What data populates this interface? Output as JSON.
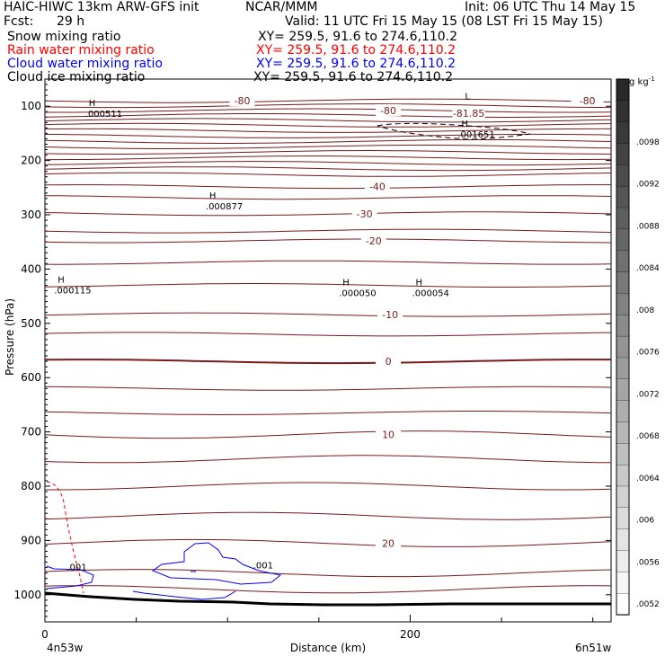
{
  "header": {
    "title": "HAIC-HIWC 13km ARW-GFS init",
    "org": "NCAR/MMM",
    "init": "Init: 06 UTC Thu 14 May 15",
    "fcst_label": "Fcst:",
    "fcst_value": "29 h",
    "valid": "Valid: 11 UTC Fri 15 May 15 (08 LST Fri 15 May 15)"
  },
  "fields": [
    {
      "name": "Snow mixing ratio",
      "xy": "XY= 259.5, 91.6 to 274.6,110.2",
      "color": "#000000"
    },
    {
      "name": "Rain water mixing ratio",
      "xy": "XY= 259.5, 91.6 to 274.6,110.2",
      "color": "#ff0000"
    },
    {
      "name": "Cloud water mixing ratio",
      "xy": "XY= 259.5, 91.6 to 274.6,110.2",
      "color": "#0000ff"
    },
    {
      "name": "Cloud ice mixing ratio",
      "xy": "XY= 259.5, 91.6 to 274.6,110.2",
      "color": "#000000"
    }
  ],
  "chart_data": {
    "type": "cross-section contour",
    "ylabel": "Pressure (hPa)",
    "xlabel": "Distance (km)",
    "x_start_label": "4n53w",
    "x_end_label": "6n51w",
    "x_ticks": [
      0,
      200
    ],
    "xlim": [
      0,
      310
    ],
    "y_ticks": [
      100,
      200,
      300,
      400,
      500,
      600,
      700,
      800,
      900,
      1000
    ],
    "ylim": [
      50,
      1050
    ],
    "temperature_contours": [
      {
        "label": "-80",
        "p": 90,
        "label_x": 108
      },
      {
        "label": "-80",
        "p": 108,
        "label_x": 188
      },
      {
        "label": "-40",
        "p": 248,
        "label_x": 182
      },
      {
        "label": "-30",
        "p": 298,
        "label_x": 175
      },
      {
        "label": "-20",
        "p": 348,
        "label_x": 180
      },
      {
        "label": "-10",
        "p": 484,
        "label_x": 189
      },
      {
        "label": "0",
        "p": 570,
        "label_x": 188
      },
      {
        "label": "10",
        "p": 705,
        "label_x": 188
      },
      {
        "label": "20",
        "p": 905,
        "label_x": 188
      }
    ],
    "contour_labels_extra": [
      {
        "label": "-80",
        "p": 90,
        "x": 297
      },
      {
        "label": "-81.85",
        "p": 113,
        "x": 232
      }
    ],
    "extrema": [
      {
        "kind": "H",
        "value": ".000511",
        "x": 24,
        "p": 110
      },
      {
        "kind": "H",
        "value": ".000877",
        "x": 90,
        "p": 280
      },
      {
        "kind": "H",
        "value": ".000115",
        "x": 7,
        "p": 435
      },
      {
        "kind": "H",
        "value": ".000050",
        "x": 163,
        "p": 440
      },
      {
        "kind": "H",
        "value": ".000054",
        "x": 203,
        "p": 440
      },
      {
        "kind": "H",
        "value": ".001651",
        "x": 228,
        "p": 148
      },
      {
        "kind": "L",
        "value": "",
        "x": 230,
        "p": 97
      }
    ],
    "cloud_water_labels": [
      {
        "value": ".001",
        "x": 12,
        "p": 948
      },
      {
        "value": ".001",
        "x": 114,
        "p": 945
      }
    ],
    "colorbar": {
      "unit": "g kg",
      "unit_exp": "-1",
      "labels": [
        ".0098",
        ".0092",
        ".0088",
        ".0084",
        ".008",
        ".0076",
        ".0072",
        ".0068",
        ".0064",
        ".006",
        ".0056",
        ".0052"
      ]
    }
  }
}
